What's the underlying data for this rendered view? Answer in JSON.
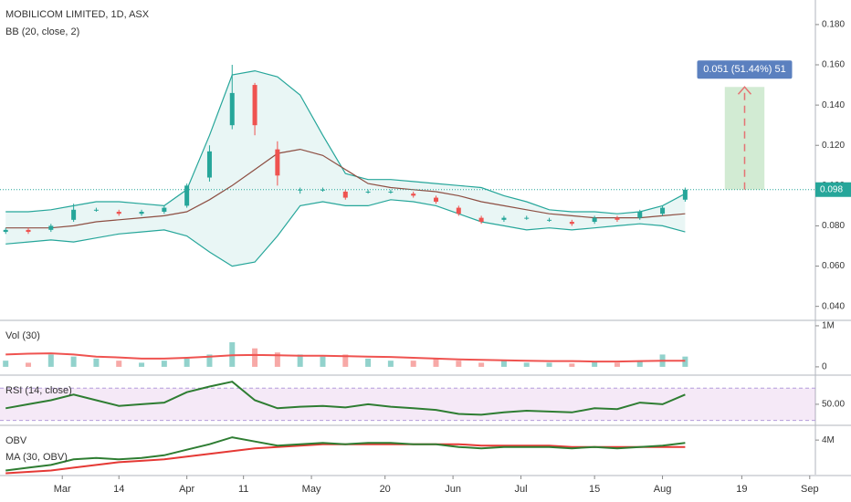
{
  "chart_data": [
    {
      "type": "candlestick",
      "title": "MOBILICOM LIMITED, 1D, ASX",
      "subtitle": "BB (20, close, 2)",
      "x": [
        -10,
        -6,
        -2,
        2,
        6,
        10,
        14,
        18,
        22,
        26,
        30,
        34,
        38,
        42,
        46,
        50,
        54,
        58,
        62,
        66,
        70,
        74,
        78,
        82,
        86,
        90,
        94,
        98,
        102,
        106,
        110
      ],
      "open": [
        0.077,
        0.078,
        0.078,
        0.083,
        0.088,
        0.087,
        0.086,
        0.087,
        0.09,
        0.104,
        0.13,
        0.15,
        0.118,
        0.098,
        0.098,
        0.097,
        0.097,
        0.097,
        0.096,
        0.094,
        0.089,
        0.084,
        0.083,
        0.084,
        0.083,
        0.082,
        0.082,
        0.084,
        0.084,
        0.086,
        0.093
      ],
      "high": [
        0.079,
        0.079,
        0.081,
        0.091,
        0.089,
        0.088,
        0.088,
        0.09,
        0.101,
        0.12,
        0.16,
        0.151,
        0.122,
        0.099,
        0.099,
        0.098,
        0.098,
        0.098,
        0.097,
        0.095,
        0.09,
        0.085,
        0.085,
        0.085,
        0.084,
        0.083,
        0.085,
        0.085,
        0.088,
        0.09,
        0.099
      ],
      "low": [
        0.076,
        0.076,
        0.077,
        0.082,
        0.087,
        0.085,
        0.085,
        0.086,
        0.089,
        0.102,
        0.128,
        0.125,
        0.1,
        0.096,
        0.097,
        0.093,
        0.096,
        0.096,
        0.094,
        0.091,
        0.085,
        0.081,
        0.082,
        0.083,
        0.082,
        0.08,
        0.081,
        0.082,
        0.083,
        0.085,
        0.092
      ],
      "close": [
        0.078,
        0.077,
        0.08,
        0.088,
        0.088,
        0.086,
        0.087,
        0.089,
        0.1,
        0.117,
        0.146,
        0.13,
        0.105,
        0.098,
        0.098,
        0.094,
        0.097,
        0.097,
        0.095,
        0.092,
        0.086,
        0.082,
        0.084,
        0.084,
        0.083,
        0.081,
        0.084,
        0.083,
        0.087,
        0.089,
        0.098
      ],
      "bb_upper": [
        0.087,
        0.087,
        0.088,
        0.09,
        0.092,
        0.092,
        0.091,
        0.09,
        0.098,
        0.125,
        0.155,
        0.157,
        0.154,
        0.145,
        0.125,
        0.106,
        0.103,
        0.103,
        0.102,
        0.101,
        0.1,
        0.099,
        0.095,
        0.092,
        0.088,
        0.087,
        0.087,
        0.086,
        0.087,
        0.09,
        0.096
      ],
      "bb_basis": [
        0.079,
        0.079,
        0.079,
        0.08,
        0.082,
        0.083,
        0.084,
        0.085,
        0.087,
        0.093,
        0.1,
        0.108,
        0.116,
        0.118,
        0.115,
        0.108,
        0.101,
        0.099,
        0.098,
        0.097,
        0.095,
        0.092,
        0.09,
        0.088,
        0.086,
        0.085,
        0.084,
        0.084,
        0.084,
        0.085,
        0.086
      ],
      "bb_lower": [
        0.071,
        0.072,
        0.073,
        0.072,
        0.074,
        0.076,
        0.077,
        0.078,
        0.075,
        0.067,
        0.06,
        0.062,
        0.075,
        0.09,
        0.092,
        0.09,
        0.09,
        0.093,
        0.092,
        0.09,
        0.086,
        0.082,
        0.08,
        0.078,
        0.079,
        0.078,
        0.079,
        0.08,
        0.081,
        0.08,
        0.077
      ],
      "up_color": "#26a69a",
      "down_color": "#ef5350",
      "band_color": "#26a69a",
      "basis_color": "#8d4e42",
      "xlim": [
        -11,
        133
      ],
      "xticks": [
        {
          "value": 0,
          "label": "Mar"
        },
        {
          "value": 10,
          "label": "14"
        },
        {
          "value": 22,
          "label": "Apr"
        },
        {
          "value": 32,
          "label": "11"
        },
        {
          "value": 44,
          "label": "May"
        },
        {
          "value": 57,
          "label": "20"
        },
        {
          "value": 69,
          "label": "Jun"
        },
        {
          "value": 81,
          "label": "Jul"
        },
        {
          "value": 94,
          "label": "15"
        },
        {
          "value": 106,
          "label": "Aug"
        },
        {
          "value": 120,
          "label": "19"
        },
        {
          "value": 132,
          "label": "Sep"
        }
      ],
      "ylim": [
        0.0335,
        0.1922
      ],
      "yticks": [
        {
          "value": 0.04,
          "label": "0.040"
        },
        {
          "value": 0.06,
          "label": "0.060"
        },
        {
          "value": 0.08,
          "label": "0.080"
        },
        {
          "value": 0.1,
          "label": "0.100"
        },
        {
          "value": 0.12,
          "label": "0.120"
        },
        {
          "value": 0.14,
          "label": "0.140"
        },
        {
          "value": 0.16,
          "label": "0.160"
        },
        {
          "value": 0.18,
          "label": "0.180"
        }
      ],
      "last_price": 0.098,
      "last_price_label": "0.098",
      "measure": {
        "label": "0.051 (51.44%) 51",
        "from": 0.098,
        "to": 0.149,
        "start": 117,
        "end": 124
      }
    },
    {
      "type": "bar",
      "title": "Vol (30)",
      "values": [
        150000,
        100000,
        300000,
        250000,
        200000,
        150000,
        100000,
        150000,
        200000,
        300000,
        600000,
        450000,
        350000,
        300000,
        250000,
        300000,
        200000,
        150000,
        150000,
        200000,
        150000,
        100000,
        150000,
        100000,
        100000,
        80000,
        120000,
        100000,
        150000,
        300000,
        250000
      ],
      "ma": [
        300000,
        320000,
        330000,
        300000,
        250000,
        230000,
        200000,
        200000,
        220000,
        250000,
        280000,
        290000,
        280000,
        270000,
        270000,
        260000,
        250000,
        240000,
        220000,
        200000,
        180000,
        170000,
        160000,
        150000,
        140000,
        140000,
        130000,
        130000,
        140000,
        150000,
        150000
      ],
      "ma_color": "#ef5350",
      "ylim": [
        -180000,
        1110000
      ],
      "yticks": [
        0,
        {
          "value": 1000000,
          "label": "1M"
        }
      ]
    },
    {
      "type": "line",
      "title": "RSI (14, close)",
      "values": [
        45,
        50,
        55,
        62,
        55,
        48,
        50,
        52,
        65,
        72,
        78,
        55,
        45,
        47,
        48,
        46,
        50,
        47,
        45,
        43,
        38,
        37,
        40,
        42,
        41,
        40,
        45,
        44,
        52,
        50,
        62
      ],
      "color": "#2e7d32",
      "band": [
        30,
        70
      ],
      "ylim": [
        25,
        85
      ],
      "yticks": [
        {
          "value": 50,
          "label": "50.00"
        }
      ]
    },
    {
      "type": "line",
      "title": "OBV",
      "ma_title": "MA (30, OBV)",
      "values": [
        1800000,
        2000000,
        2200000,
        2600000,
        2700000,
        2600000,
        2700000,
        2900000,
        3300000,
        3700000,
        4200000,
        3900000,
        3600000,
        3700000,
        3800000,
        3700000,
        3800000,
        3800000,
        3700000,
        3700000,
        3500000,
        3400000,
        3500000,
        3500000,
        3500000,
        3400000,
        3500000,
        3400000,
        3500000,
        3600000,
        3800000
      ],
      "ma": [
        1600000,
        1700000,
        1800000,
        2000000,
        2200000,
        2400000,
        2500000,
        2600000,
        2800000,
        3000000,
        3200000,
        3400000,
        3500000,
        3600000,
        3700000,
        3700000,
        3700000,
        3700000,
        3700000,
        3700000,
        3700000,
        3600000,
        3600000,
        3600000,
        3600000,
        3500000,
        3500000,
        3500000,
        3500000,
        3500000,
        3500000
      ],
      "color": "#2e7d32",
      "ma_color": "#e53935",
      "ylim": [
        1500000,
        5000000
      ],
      "yticks": [
        {
          "value": 4000000,
          "label": "4M"
        }
      ]
    }
  ]
}
